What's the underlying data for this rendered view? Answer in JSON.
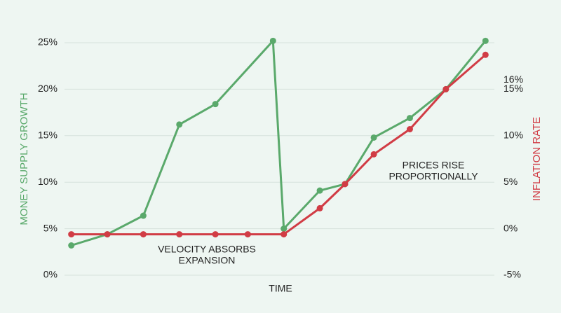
{
  "chart_data": {
    "type": "line",
    "x_label": "TIME",
    "y_label": "MONEY SUPPLY GROWTH",
    "y2_label": "INFLATION RATE",
    "xlim": [
      0,
      12.5
    ],
    "ylim": [
      0,
      25
    ],
    "yticks": [
      {
        "value": 0,
        "label": "0%"
      },
      {
        "value": 5,
        "label": "5%"
      },
      {
        "value": 10,
        "label": "10%"
      },
      {
        "value": 15,
        "label": "15%"
      },
      {
        "value": 20,
        "label": "20%"
      },
      {
        "value": 25,
        "label": "25%"
      }
    ],
    "y2lim": [
      -5,
      20
    ],
    "y2ticks": [
      {
        "value": -5,
        "label": "-5%"
      },
      {
        "value": 0,
        "label": "0%"
      },
      {
        "value": 5,
        "label": "5%"
      },
      {
        "value": 10,
        "label": "10%"
      },
      {
        "value": 15,
        "label": "15%"
      },
      {
        "value": 16,
        "label": "16%"
      }
    ],
    "grid": true,
    "series": [
      {
        "name": "MONEY SUPPLY GROWTH",
        "color": "#5aa96b",
        "x": [
          0.5,
          1.5,
          2.5,
          3.5,
          4.5,
          6.1,
          6.4,
          7.4,
          8.1,
          8.9,
          9.9,
          10.9,
          12
        ],
        "values": [
          3.2,
          4.4,
          6.4,
          16.2,
          18.4,
          25.2,
          5.0,
          9.1,
          9.8,
          14.8,
          16.9,
          20.0,
          25.2
        ]
      },
      {
        "name": "INFLATION RATE",
        "color": "#d13c45",
        "axis": "y2",
        "x": [
          0.5,
          1.5,
          2.5,
          3.5,
          4.5,
          5.4,
          6.4,
          7.4,
          8.1,
          8.9,
          9.9,
          10.9,
          12
        ],
        "values": [
          -0.6,
          -0.6,
          -0.6,
          -0.6,
          -0.6,
          -0.6,
          -0.6,
          2.2,
          4.8,
          8.0,
          10.7,
          15.0,
          18.7
        ]
      }
    ],
    "annotations": [
      {
        "lines": [
          "VELOCITY ABSORBS",
          "EXPANSION"
        ]
      },
      {
        "lines": [
          "PRICES RISE",
          "PROPORTIONALLY"
        ]
      }
    ]
  }
}
